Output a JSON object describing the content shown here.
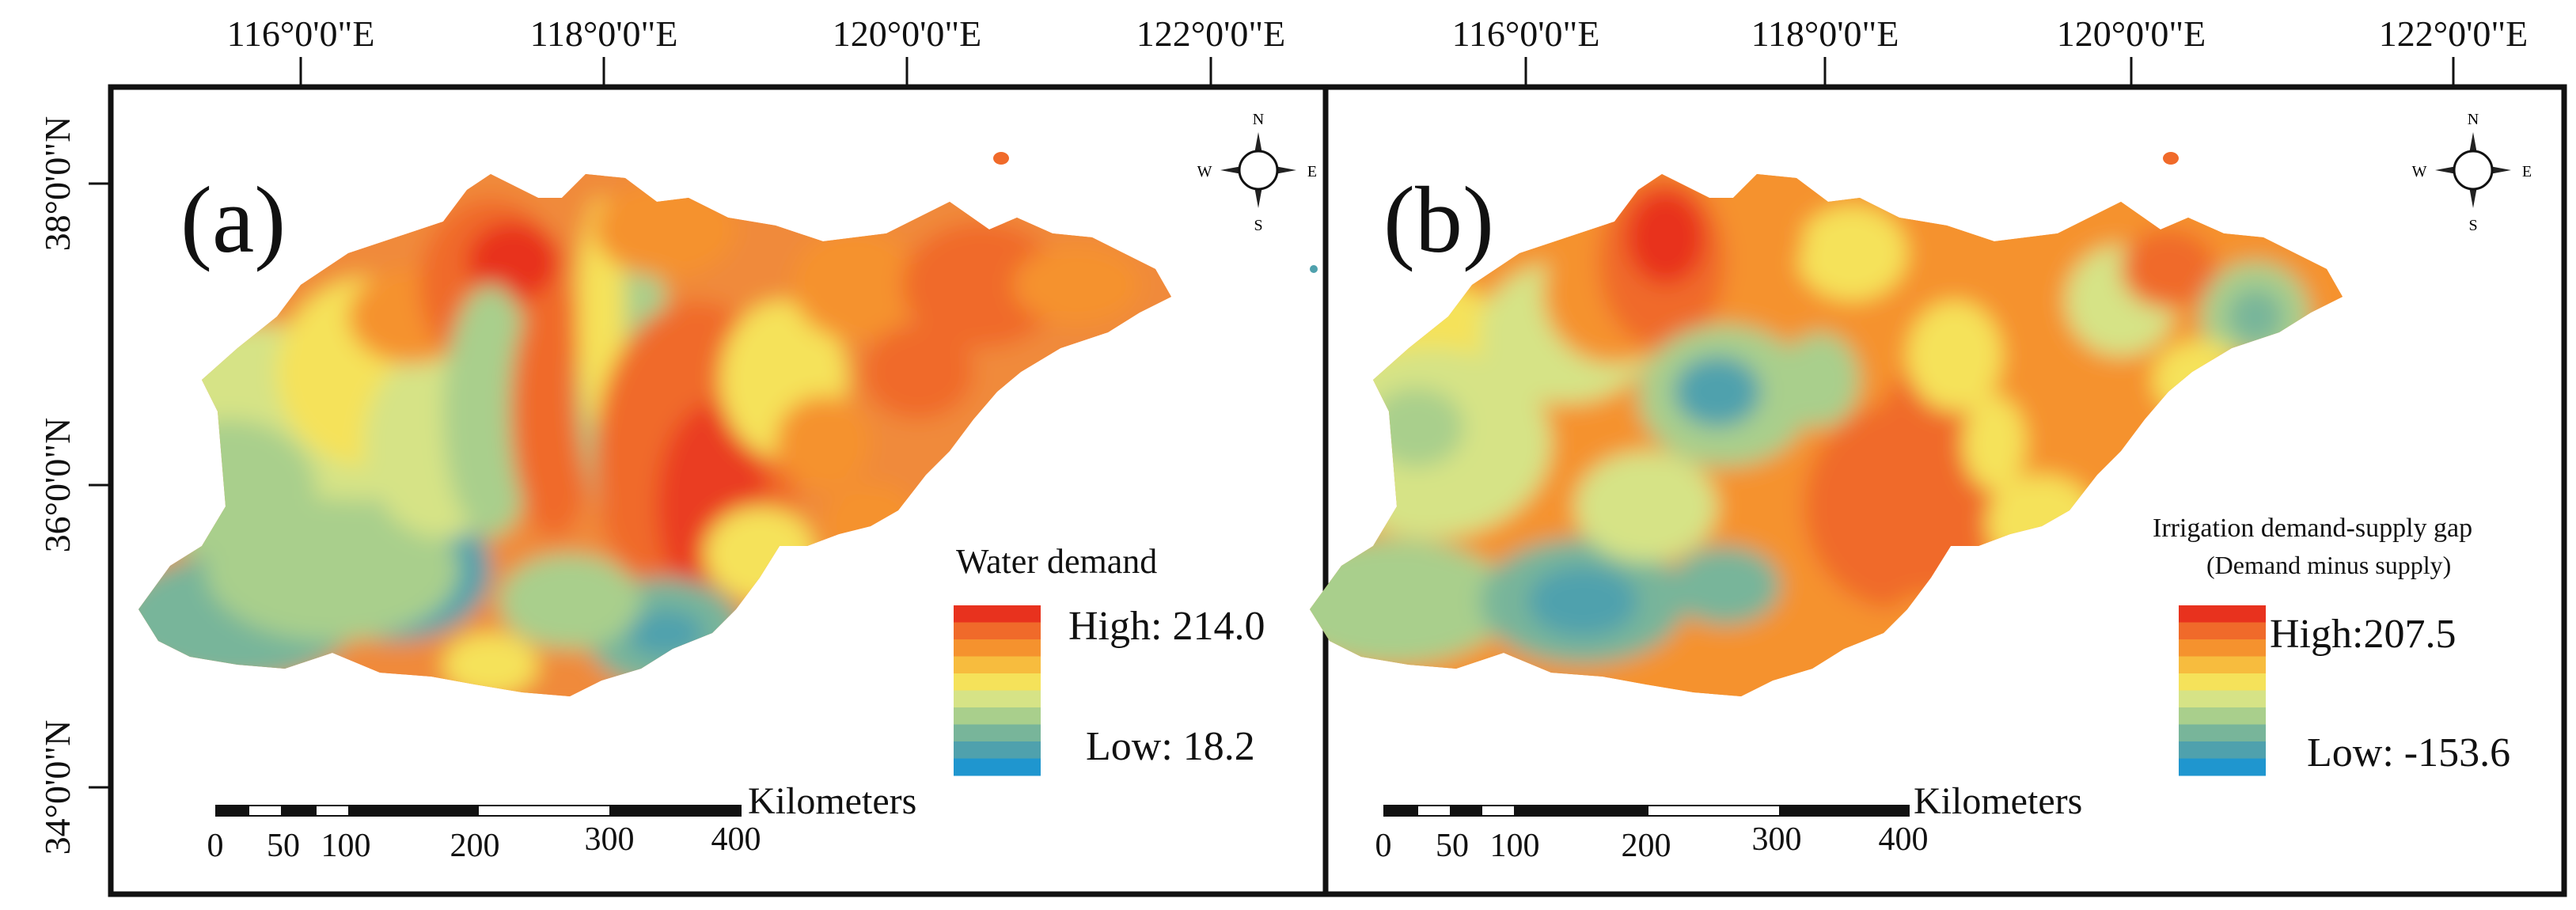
{
  "figure": {
    "top_axis_labels": [
      "116°0'0\"E",
      "118°0'0\"E",
      "120°0'0\"E",
      "122°0'0\"E"
    ],
    "left_axis_labels": [
      "38°0'0\"N",
      "36°0'0\"N",
      "34°0'0\"N"
    ]
  },
  "panels": [
    {
      "tag": "(a)",
      "legend_title": "Water demand",
      "legend_subtitle": "",
      "high_label": "High: 214.0",
      "low_label": "Low: 18.2",
      "scalebar_unit": "Kilometers",
      "scalebar_ticks": [
        "0",
        "50",
        "100",
        "200",
        "300",
        "400"
      ],
      "compass": {
        "n": "N",
        "s": "S",
        "e": "E",
        "w": "W"
      }
    },
    {
      "tag": "(b)",
      "legend_title": "Irrigation demand-supply gap",
      "legend_subtitle": "(Demand minus supply)",
      "high_label": "High:207.5",
      "low_label": "Low: -153.6",
      "scalebar_unit": "Kilometers",
      "scalebar_ticks": [
        "0",
        "50",
        "100",
        "200",
        "300",
        "400"
      ],
      "compass": {
        "n": "N",
        "s": "S",
        "e": "E",
        "w": "W"
      }
    }
  ],
  "legend_colors": [
    "#e8321e",
    "#f06a2a",
    "#f5922e",
    "#f7bc3e",
    "#f5e25a",
    "#d6e386",
    "#a9cf8c",
    "#78b59a",
    "#4fa1ad",
    "#1f96cf"
  ]
}
